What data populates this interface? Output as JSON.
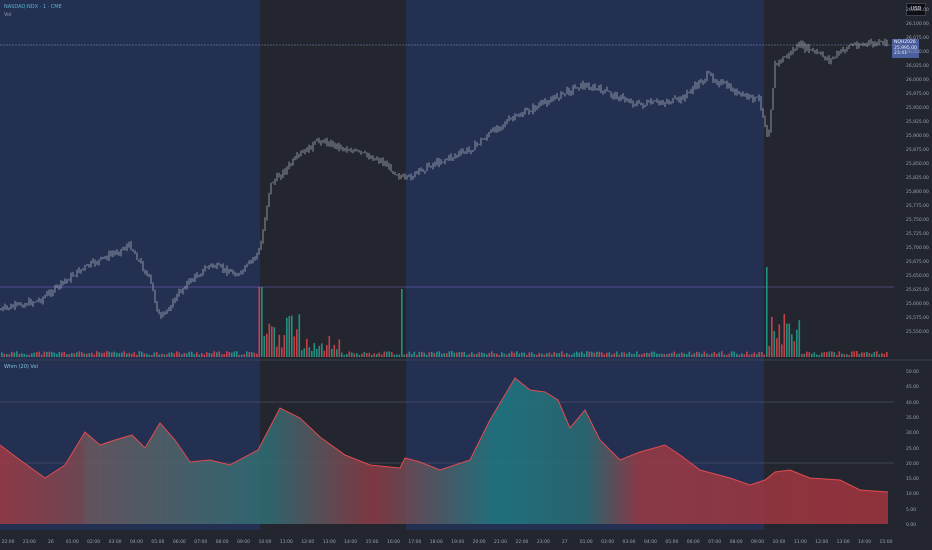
{
  "header": {
    "symbol_line": "NASDAQ:NDX · 1 · CME",
    "volume_label": "Vol",
    "indicator_label": "Whm (20) Vol"
  },
  "currency": "USD",
  "price_badge": {
    "label": "NQH2026",
    "price": "25,995.00",
    "countdown": "23:41"
  },
  "colors": {
    "background_dark": "#23262f",
    "background_session": "#243052",
    "bar_up": "#22a38f",
    "bar_down": "#e0474c",
    "candle": "#d6d9e0",
    "accent": "#4b5f9e"
  },
  "price_axis": [
    "26,125.00",
    "26,100.00",
    "26,075.00",
    "26,050.00",
    "26,025.00",
    "26,000.00",
    "25,975.00",
    "25,950.00",
    "25,925.00",
    "25,900.00",
    "25,875.00",
    "25,850.00",
    "25,825.00",
    "25,800.00",
    "25,775.00",
    "25,750.00",
    "25,725.00",
    "25,700.00",
    "25,675.00",
    "25,650.00",
    "25,625.00",
    "25,600.00",
    "25,575.00",
    "25,550.00"
  ],
  "indicator_axis": [
    "50.00",
    "45.00",
    "40.00",
    "35.00",
    "30.00",
    "25.00",
    "20.00",
    "15.00",
    "10.00",
    "5.00",
    "0.00"
  ],
  "time_axis": [
    "22:00",
    "23:00",
    "26",
    "01:00",
    "02:00",
    "03:00",
    "04:00",
    "05:00",
    "06:00",
    "07:00",
    "08:00",
    "09:00",
    "10:00",
    "11:00",
    "12:00",
    "13:00",
    "14:00",
    "15:00",
    "16:00",
    "17:00",
    "18:00",
    "19:00",
    "20:00",
    "21:00",
    "22:00",
    "23:00",
    "27",
    "01:00",
    "02:00",
    "03:00",
    "04:00",
    "05:00",
    "06:00",
    "07:00",
    "08:00",
    "09:00",
    "10:00",
    "11:00",
    "12:00",
    "13:00",
    "14:00",
    "15:00"
  ]
}
